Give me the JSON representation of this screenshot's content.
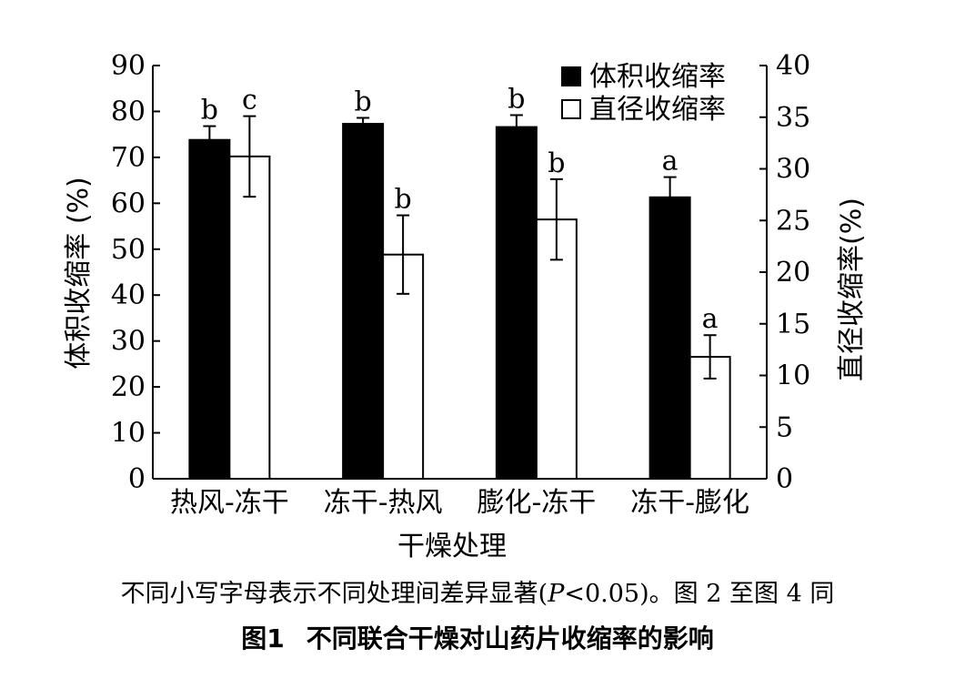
{
  "chart_data": {
    "type": "bar",
    "categories": [
      "热风-冻干",
      "冻干-热风",
      "膨化-冻干",
      "冻干-膨化"
    ],
    "xlabel": "干燥处理",
    "ylabel_left": "体积收缩率 (%)",
    "ylabel_right": "直径收缩率(%)",
    "ylim_left": [
      0,
      90
    ],
    "ylim_right": [
      0,
      40
    ],
    "yticks_left": [
      "0",
      "10",
      "20",
      "30",
      "40",
      "50",
      "60",
      "70",
      "80",
      "90"
    ],
    "yticks_right": [
      "0",
      "5",
      "10",
      "15",
      "20",
      "25",
      "30",
      "35",
      "40"
    ],
    "legend_position": "top-right",
    "grid": false,
    "series": [
      {
        "name": "体积收缩率",
        "axis": "left",
        "fill": "#000000",
        "values": [
          73.8,
          77.3,
          76.6,
          61.3
        ],
        "errors": [
          3.0,
          1.3,
          2.6,
          4.4
        ],
        "labels": [
          "b",
          "b",
          "b",
          "a"
        ]
      },
      {
        "name": "直径收缩率",
        "axis": "right",
        "fill": "#ffffff",
        "values": [
          31.2,
          21.7,
          25.1,
          11.8
        ],
        "errors": [
          3.9,
          3.8,
          3.9,
          2.1
        ],
        "labels": [
          "c",
          "b",
          "b",
          "a"
        ]
      }
    ]
  },
  "note": {
    "text": "不同小写字母表示不同处理间差异显著(",
    "p": "P",
    "text2": "<0.05)。图 2 至图 4 同"
  },
  "caption": {
    "num": "图1",
    "title": "不同联合干燥对山药片收缩率的影响"
  }
}
